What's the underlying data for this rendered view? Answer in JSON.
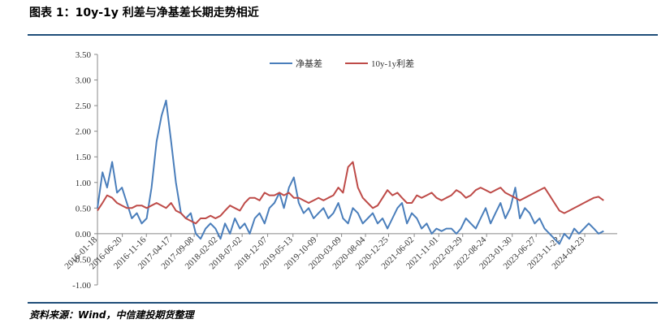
{
  "chart_data": {
    "type": "line",
    "title": "图表 1：10y-1y 利差与净基差长期走势相近",
    "source": "资料来源：Wind，中信建投期货整理",
    "x": [
      "2016-01-18",
      "2016-02-18",
      "2016-03-18",
      "2016-04-18",
      "2016-05-18",
      "2016-06-18",
      "2016-07-18",
      "2016-08-18",
      "2016-09-18",
      "2016-10-18",
      "2016-11-18",
      "2016-12-18",
      "2017-01-18",
      "2017-02-18",
      "2017-03-18",
      "2017-04-18",
      "2017-05-18",
      "2017-06-18",
      "2017-07-18",
      "2017-08-18",
      "2017-09-18",
      "2017-10-18",
      "2017-11-18",
      "2017-12-18",
      "2018-01-18",
      "2018-02-18",
      "2018-03-18",
      "2018-04-18",
      "2018-05-18",
      "2018-06-18",
      "2018-07-18",
      "2018-08-18",
      "2018-09-18",
      "2018-10-18",
      "2018-11-18",
      "2018-12-18",
      "2019-01-18",
      "2019-02-18",
      "2019-03-18",
      "2019-04-18",
      "2019-05-18",
      "2019-06-18",
      "2019-07-18",
      "2019-08-18",
      "2019-09-18",
      "2019-10-18",
      "2019-11-18",
      "2019-12-18",
      "2020-01-18",
      "2020-02-18",
      "2020-03-18",
      "2020-04-18",
      "2020-05-18",
      "2020-06-18",
      "2020-07-18",
      "2020-08-18",
      "2020-09-18",
      "2020-10-18",
      "2020-11-18",
      "2020-12-18",
      "2021-01-18",
      "2021-02-18",
      "2021-03-18",
      "2021-04-18",
      "2021-05-18",
      "2021-06-18",
      "2021-07-18",
      "2021-08-18",
      "2021-09-18",
      "2021-10-18",
      "2021-11-18",
      "2021-12-18",
      "2022-01-18",
      "2022-02-18",
      "2022-03-18",
      "2022-04-18",
      "2022-05-18",
      "2022-06-18",
      "2022-07-18",
      "2022-08-18",
      "2022-09-18",
      "2022-10-18",
      "2022-11-18",
      "2022-12-18",
      "2023-01-18",
      "2023-02-18",
      "2023-03-18",
      "2023-04-18",
      "2023-05-18",
      "2023-06-18",
      "2023-07-18",
      "2023-08-18",
      "2023-09-18",
      "2023-10-18",
      "2023-11-18",
      "2023-12-18",
      "2024-01-18",
      "2024-02-18",
      "2024-03-18",
      "2024-04-18",
      "2024-05-18",
      "2024-06-18",
      "2024-07-18",
      "2024-08-18"
    ],
    "series": [
      {
        "name": "净基差",
        "color": "#4a7ebb",
        "values": [
          0.5,
          1.2,
          0.9,
          1.4,
          0.8,
          0.9,
          0.6,
          0.3,
          0.4,
          0.2,
          0.3,
          0.9,
          1.8,
          2.3,
          2.6,
          1.8,
          1.0,
          0.4,
          0.3,
          0.4,
          0.0,
          -0.1,
          0.1,
          0.2,
          0.1,
          -0.1,
          0.2,
          0.0,
          0.3,
          0.1,
          0.2,
          0.0,
          0.3,
          0.4,
          0.2,
          0.5,
          0.6,
          0.8,
          0.5,
          0.9,
          1.1,
          0.6,
          0.4,
          0.5,
          0.3,
          0.4,
          0.5,
          0.3,
          0.4,
          0.6,
          0.3,
          0.2,
          0.5,
          0.4,
          0.2,
          0.3,
          0.4,
          0.2,
          0.3,
          0.1,
          0.3,
          0.5,
          0.6,
          0.2,
          0.4,
          0.3,
          0.1,
          0.2,
          0.0,
          0.1,
          0.05,
          0.1,
          0.1,
          0.0,
          0.1,
          0.3,
          0.2,
          0.1,
          0.3,
          0.5,
          0.2,
          0.4,
          0.6,
          0.3,
          0.5,
          0.9,
          0.3,
          0.5,
          0.4,
          0.2,
          0.3,
          0.1,
          0.0,
          -0.1,
          -0.2,
          0.0,
          -0.1,
          0.1,
          0.0,
          0.1,
          0.2,
          0.1,
          0.0,
          0.05
        ]
      },
      {
        "name": "10y-1y利差",
        "color": "#be4b48",
        "values": [
          0.45,
          0.6,
          0.75,
          0.7,
          0.6,
          0.55,
          0.5,
          0.5,
          0.55,
          0.55,
          0.5,
          0.55,
          0.6,
          0.55,
          0.5,
          0.6,
          0.45,
          0.4,
          0.3,
          0.25,
          0.2,
          0.3,
          0.3,
          0.35,
          0.3,
          0.35,
          0.45,
          0.55,
          0.5,
          0.45,
          0.6,
          0.7,
          0.7,
          0.65,
          0.8,
          0.75,
          0.75,
          0.8,
          0.75,
          0.8,
          0.7,
          0.7,
          0.65,
          0.6,
          0.65,
          0.7,
          0.65,
          0.7,
          0.75,
          0.9,
          0.8,
          1.3,
          1.4,
          0.9,
          0.7,
          0.6,
          0.5,
          0.55,
          0.7,
          0.85,
          0.75,
          0.8,
          0.7,
          0.6,
          0.6,
          0.75,
          0.7,
          0.75,
          0.8,
          0.7,
          0.65,
          0.7,
          0.75,
          0.85,
          0.8,
          0.7,
          0.75,
          0.85,
          0.9,
          0.85,
          0.8,
          0.85,
          0.9,
          0.8,
          0.75,
          0.7,
          0.65,
          0.7,
          0.75,
          0.8,
          0.85,
          0.9,
          0.75,
          0.6,
          0.45,
          0.4,
          0.45,
          0.5,
          0.55,
          0.6,
          0.65,
          0.7,
          0.72,
          0.65
        ]
      }
    ],
    "xlim": [
      "2016-01-18",
      "2024-11-10"
    ],
    "xticks": [
      "2016-01-18",
      "2016-06-20",
      "2016-11-16",
      "2017-04-17",
      "2017-09-08",
      "2018-02-02",
      "2018-07-02",
      "2018-12-07",
      "2019-05-13",
      "2019-10-09",
      "2020-03-09",
      "2020-08-04",
      "2020-12-25",
      "2021-06-02",
      "2021-11-01",
      "2022-03-29",
      "2022-08-24",
      "2023-01-30",
      "2023-06-27",
      "2023-11-22",
      "2024-04-23"
    ],
    "ylim": [
      -1,
      3.5
    ],
    "yticks": [
      {
        "value": -1,
        "label": "-1.00"
      },
      {
        "value": -0.5,
        "label": "-0.50"
      },
      {
        "value": 0,
        "label": "0.00"
      },
      {
        "value": 0.5,
        "label": "0.50"
      },
      {
        "value": 1,
        "label": "1.00"
      },
      {
        "value": 1.5,
        "label": "1.50"
      },
      {
        "value": 2,
        "label": "2.00"
      },
      {
        "value": 2.5,
        "label": "2.50"
      },
      {
        "value": 3,
        "label": "3.00"
      },
      {
        "value": 3.5,
        "label": "3.50"
      }
    ],
    "grid": false,
    "legend": "top"
  }
}
